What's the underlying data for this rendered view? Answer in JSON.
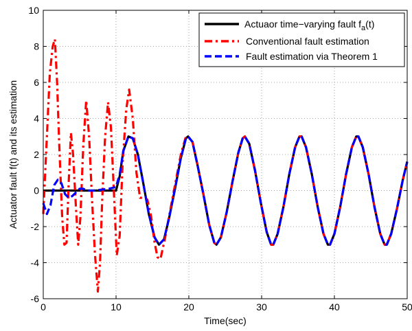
{
  "chart_data": {
    "type": "line",
    "xlabel": "Time(sec)",
    "ylabel": "Actuator fault f(t) and its estimation",
    "xlim": [
      0,
      50
    ],
    "ylim": [
      -6,
      10
    ],
    "xticks": [
      0,
      10,
      20,
      30,
      40,
      50
    ],
    "yticks": [
      -6,
      -4,
      -2,
      0,
      2,
      4,
      6,
      8,
      10
    ],
    "grid": true,
    "legend_position": "top-right",
    "series": [
      {
        "name": "Actuaor time−varying fault f",
        "name_subscript": "a",
        "name_suffix": "(t)",
        "color": "#000000",
        "style": "solid",
        "points": [
          [
            0,
            0
          ],
          [
            10,
            0
          ],
          [
            10.5,
            0.8
          ],
          [
            11,
            2.2
          ],
          [
            11.7,
            3.0
          ],
          [
            12.3,
            2.9
          ],
          [
            13,
            2.0
          ],
          [
            13.7,
            0.5
          ],
          [
            14.5,
            -1.3
          ],
          [
            15.3,
            -2.6
          ],
          [
            15.9,
            -3.0
          ],
          [
            16.6,
            -2.7
          ],
          [
            17.3,
            -1.5
          ],
          [
            18.1,
            0.1
          ],
          [
            18.9,
            1.8
          ],
          [
            19.6,
            2.9
          ],
          [
            19.9,
            3.0
          ],
          [
            20.5,
            2.7
          ],
          [
            21.2,
            1.4
          ],
          [
            22,
            -0.2
          ],
          [
            22.8,
            -1.9
          ],
          [
            23.5,
            -2.9
          ],
          [
            23.8,
            -3.0
          ],
          [
            24.4,
            -2.6
          ],
          [
            25.2,
            -1.2
          ],
          [
            26,
            0.5
          ],
          [
            26.8,
            2.1
          ],
          [
            27.4,
            2.9
          ],
          [
            27.7,
            3.0
          ],
          [
            28.3,
            2.6
          ],
          [
            29.1,
            1.1
          ],
          [
            29.9,
            -0.7
          ],
          [
            30.7,
            -2.3
          ],
          [
            31.3,
            -3.0
          ],
          [
            31.6,
            -3.0
          ],
          [
            32.2,
            -2.4
          ],
          [
            33,
            -0.9
          ],
          [
            33.8,
            0.9
          ],
          [
            34.6,
            2.4
          ],
          [
            35.2,
            3.0
          ],
          [
            35.5,
            3.0
          ],
          [
            36.1,
            2.4
          ],
          [
            36.9,
            0.9
          ],
          [
            37.7,
            -0.9
          ],
          [
            38.5,
            -2.4
          ],
          [
            39.1,
            -3.0
          ],
          [
            39.4,
            -3.0
          ],
          [
            40,
            -2.4
          ],
          [
            40.8,
            -0.9
          ],
          [
            41.6,
            0.9
          ],
          [
            42.4,
            2.4
          ],
          [
            43,
            3.0
          ],
          [
            43.3,
            3.0
          ],
          [
            43.9,
            2.4
          ],
          [
            44.7,
            0.9
          ],
          [
            45.5,
            -0.9
          ],
          [
            46.3,
            -2.4
          ],
          [
            46.9,
            -3.0
          ],
          [
            47.2,
            -3.0
          ],
          [
            47.8,
            -2.4
          ],
          [
            48.6,
            -1.0
          ],
          [
            49.4,
            0.6
          ],
          [
            50,
            1.6
          ]
        ]
      },
      {
        "name": "Conventional fault estimation",
        "color": "#ff0000",
        "style": "dash-dot",
        "points": [
          [
            0,
            -1.3
          ],
          [
            0.5,
            3.0
          ],
          [
            0.9,
            6.5
          ],
          [
            1.3,
            8.0
          ],
          [
            1.6,
            8.4
          ],
          [
            1.9,
            6.0
          ],
          [
            2.2,
            2.5
          ],
          [
            2.6,
            -1.5
          ],
          [
            2.9,
            -3.0
          ],
          [
            3.2,
            -2.9
          ],
          [
            3.5,
            0.5
          ],
          [
            3.8,
            3.2
          ],
          [
            4.1,
            2.0
          ],
          [
            4.5,
            -1.0
          ],
          [
            4.8,
            -3.0
          ],
          [
            5.1,
            -1.5
          ],
          [
            5.5,
            2.5
          ],
          [
            5.9,
            5.0
          ],
          [
            6.3,
            3.0
          ],
          [
            6.7,
            -0.5
          ],
          [
            7.1,
            -3.5
          ],
          [
            7.5,
            -5.6
          ],
          [
            7.8,
            -4.0
          ],
          [
            8.1,
            -0.5
          ],
          [
            8.5,
            3.0
          ],
          [
            8.9,
            4.9
          ],
          [
            9.3,
            3.5
          ],
          [
            9.7,
            0.0
          ],
          [
            10.1,
            -3.6
          ],
          [
            10.5,
            -2.5
          ],
          [
            10.9,
            1.5
          ],
          [
            11.4,
            4.5
          ],
          [
            11.8,
            5.6
          ],
          [
            12.3,
            4.0
          ],
          [
            12.8,
            1.0
          ],
          [
            13.3,
            -0.4
          ],
          [
            13.8,
            -0.4
          ],
          [
            14.3,
            -0.5
          ],
          [
            14.8,
            -1.4
          ],
          [
            15.3,
            -2.9
          ],
          [
            15.7,
            -3.7
          ],
          [
            16.1,
            -3.8
          ],
          [
            16.7,
            -2.7
          ],
          [
            17.3,
            -1.4
          ],
          [
            18.1,
            0.3
          ],
          [
            18.9,
            2.0
          ],
          [
            19.6,
            3.0
          ],
          [
            19.9,
            3.0
          ],
          [
            20.5,
            2.7
          ],
          [
            21.2,
            1.4
          ],
          [
            22,
            -0.2
          ],
          [
            22.8,
            -1.9
          ],
          [
            23.5,
            -2.9
          ],
          [
            23.8,
            -3.0
          ],
          [
            24.4,
            -2.6
          ],
          [
            25.2,
            -1.2
          ],
          [
            26,
            0.5
          ],
          [
            26.8,
            2.1
          ],
          [
            27.4,
            2.9
          ],
          [
            27.7,
            3.0
          ],
          [
            28.3,
            2.6
          ],
          [
            29.1,
            1.1
          ],
          [
            29.9,
            -0.7
          ],
          [
            30.7,
            -2.3
          ],
          [
            31.3,
            -3.0
          ],
          [
            31.6,
            -3.0
          ],
          [
            32.2,
            -2.4
          ],
          [
            33,
            -0.9
          ],
          [
            33.8,
            0.9
          ],
          [
            34.6,
            2.4
          ],
          [
            35.2,
            3.0
          ],
          [
            35.5,
            3.0
          ],
          [
            36.1,
            2.4
          ],
          [
            36.9,
            0.9
          ],
          [
            37.7,
            -0.9
          ],
          [
            38.5,
            -2.4
          ],
          [
            39.1,
            -3.0
          ],
          [
            39.4,
            -3.0
          ],
          [
            40,
            -2.4
          ],
          [
            40.8,
            -0.9
          ],
          [
            41.6,
            0.9
          ],
          [
            42.4,
            2.4
          ],
          [
            43,
            3.0
          ],
          [
            43.3,
            3.0
          ],
          [
            43.9,
            2.4
          ],
          [
            44.7,
            0.9
          ],
          [
            45.5,
            -0.9
          ],
          [
            46.3,
            -2.4
          ],
          [
            46.9,
            -3.0
          ],
          [
            47.2,
            -3.0
          ],
          [
            47.8,
            -2.4
          ],
          [
            48.6,
            -1.0
          ],
          [
            49.4,
            0.6
          ],
          [
            50,
            1.6
          ]
        ]
      },
      {
        "name": "Fault estimation via Theorem 1",
        "color": "#0000ff",
        "style": "dashed",
        "points": [
          [
            0,
            -0.7
          ],
          [
            0.5,
            -1.3
          ],
          [
            1.0,
            -0.8
          ],
          [
            1.5,
            0.3
          ],
          [
            2.0,
            0.6
          ],
          [
            2.5,
            0.4
          ],
          [
            3.0,
            -0.2
          ],
          [
            3.5,
            -0.4
          ],
          [
            4.0,
            -0.3
          ],
          [
            4.5,
            -0.1
          ],
          [
            5.0,
            0.1
          ],
          [
            5.5,
            0.1
          ],
          [
            6.0,
            0.0
          ],
          [
            7.0,
            0.0
          ],
          [
            8.0,
            0.05
          ],
          [
            9.0,
            0.1
          ],
          [
            10.0,
            0.2
          ],
          [
            10.5,
            0.9
          ],
          [
            11,
            2.2
          ],
          [
            11.7,
            3.0
          ],
          [
            12.3,
            2.9
          ],
          [
            13,
            2.0
          ],
          [
            13.7,
            0.5
          ],
          [
            14.5,
            -1.3
          ],
          [
            15.3,
            -2.6
          ],
          [
            15.9,
            -3.0
          ],
          [
            16.6,
            -2.7
          ],
          [
            17.3,
            -1.5
          ],
          [
            18.1,
            0.1
          ],
          [
            18.9,
            1.8
          ],
          [
            19.6,
            2.9
          ],
          [
            19.9,
            3.0
          ],
          [
            20.5,
            2.7
          ],
          [
            21.2,
            1.4
          ],
          [
            22,
            -0.2
          ],
          [
            22.8,
            -1.9
          ],
          [
            23.5,
            -2.9
          ],
          [
            23.8,
            -3.0
          ],
          [
            24.4,
            -2.6
          ],
          [
            25.2,
            -1.2
          ],
          [
            26,
            0.5
          ],
          [
            26.8,
            2.1
          ],
          [
            27.4,
            2.9
          ],
          [
            27.7,
            3.0
          ],
          [
            28.3,
            2.6
          ],
          [
            29.1,
            1.1
          ],
          [
            29.9,
            -0.7
          ],
          [
            30.7,
            -2.3
          ],
          [
            31.3,
            -3.0
          ],
          [
            31.6,
            -3.0
          ],
          [
            32.2,
            -2.4
          ],
          [
            33,
            -0.9
          ],
          [
            33.8,
            0.9
          ],
          [
            34.6,
            2.4
          ],
          [
            35.2,
            3.0
          ],
          [
            35.5,
            3.0
          ],
          [
            36.1,
            2.4
          ],
          [
            36.9,
            0.9
          ],
          [
            37.7,
            -0.9
          ],
          [
            38.5,
            -2.4
          ],
          [
            39.1,
            -3.0
          ],
          [
            39.4,
            -3.0
          ],
          [
            40,
            -2.4
          ],
          [
            40.8,
            -0.9
          ],
          [
            41.6,
            0.9
          ],
          [
            42.4,
            2.4
          ],
          [
            43,
            3.0
          ],
          [
            43.3,
            3.0
          ],
          [
            43.9,
            2.4
          ],
          [
            44.7,
            0.9
          ],
          [
            45.5,
            -0.9
          ],
          [
            46.3,
            -2.4
          ],
          [
            46.9,
            -3.0
          ],
          [
            47.2,
            -3.0
          ],
          [
            47.8,
            -2.4
          ],
          [
            48.6,
            -1.0
          ],
          [
            49.4,
            0.6
          ],
          [
            50,
            1.6
          ]
        ]
      }
    ]
  }
}
